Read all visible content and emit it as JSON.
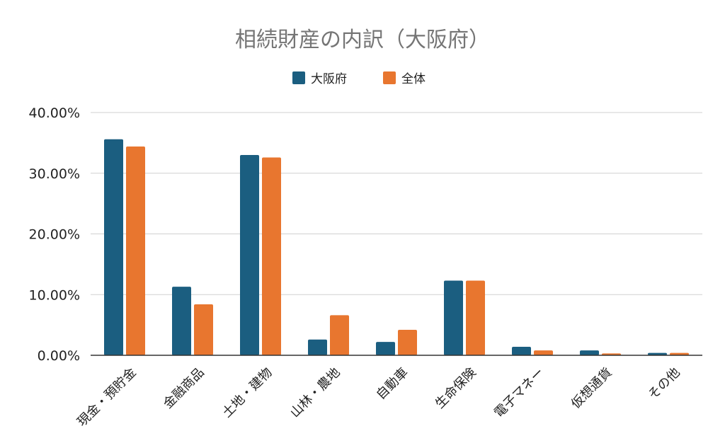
{
  "chart_data": {
    "type": "bar",
    "title": "相続財産の内訳（大阪府）",
    "categories": [
      "現金・預貯金",
      "金融商品",
      "土地・建物",
      "山林・農地",
      "自動車",
      "生命保険",
      "電子マネー",
      "仮想通貨",
      "その他"
    ],
    "series": [
      {
        "name": "大阪府",
        "values": [
          35.6,
          11.3,
          33.0,
          2.6,
          2.2,
          12.3,
          1.4,
          0.8,
          0.4
        ]
      },
      {
        "name": "全体",
        "values": [
          34.4,
          8.4,
          32.6,
          6.6,
          4.2,
          12.3,
          0.8,
          0.3,
          0.4
        ]
      }
    ],
    "ylim": [
      0,
      40
    ],
    "yticks": [
      "0.00%",
      "10.00%",
      "20.00%",
      "30.00%",
      "40.00%"
    ],
    "grid": true,
    "legend_position": "top-center",
    "colors": {
      "大阪府": "#1b5e80",
      "全体": "#e8762f"
    }
  }
}
